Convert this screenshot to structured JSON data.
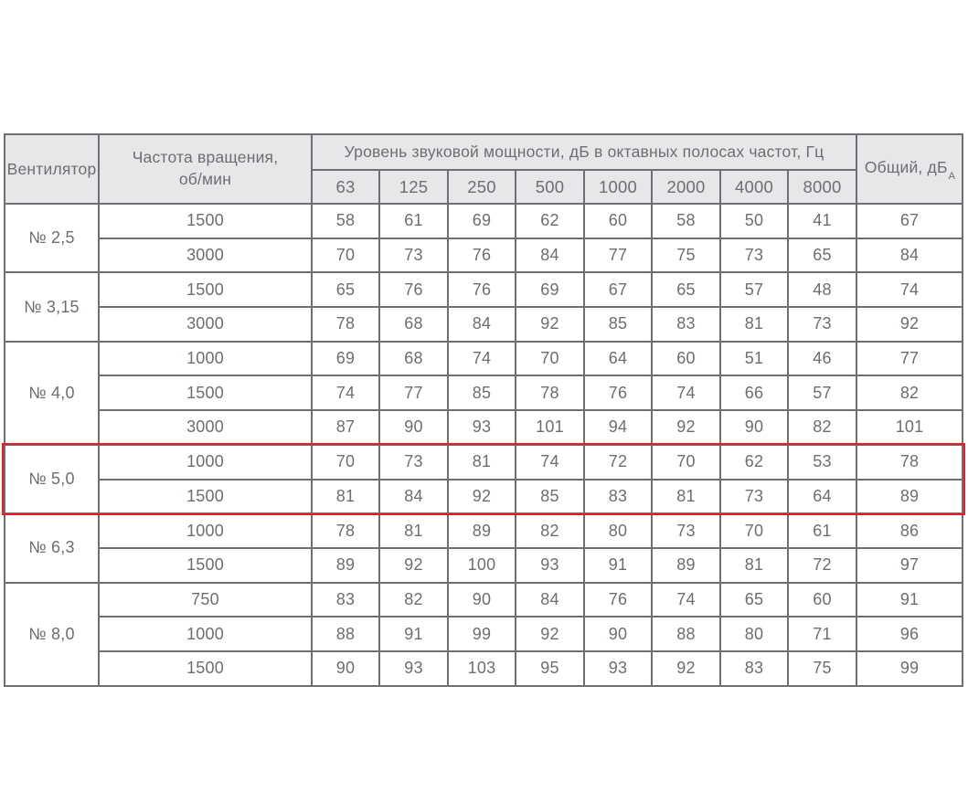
{
  "colors": {
    "border": "#6e6f72",
    "header_bg": "#e6e7e8",
    "text": "#6d6e71",
    "highlight_red": "#ec1b21"
  },
  "table": {
    "header": {
      "fan": "Вентилятор",
      "rpm": "Частота вращения, об/мин",
      "octave_title": "Уровень звуковой мощности, дБ в октавных полосах частот, Гц",
      "frequencies": [
        "63",
        "125",
        "250",
        "500",
        "1000",
        "2000",
        "4000",
        "8000"
      ],
      "total_label": "Общий, дБ",
      "total_subscript": "А"
    },
    "groups": [
      {
        "fan": "№ 2,5",
        "highlight": false,
        "rows": [
          {
            "rpm": "1500",
            "values": [
              58,
              61,
              69,
              62,
              60,
              58,
              50,
              41
            ],
            "total": 67
          },
          {
            "rpm": "3000",
            "values": [
              70,
              73,
              76,
              84,
              77,
              75,
              73,
              65
            ],
            "total": 84
          }
        ]
      },
      {
        "fan": "№ 3,15",
        "highlight": false,
        "rows": [
          {
            "rpm": "1500",
            "values": [
              65,
              76,
              76,
              69,
              67,
              65,
              57,
              48
            ],
            "total": 74
          },
          {
            "rpm": "3000",
            "values": [
              78,
              68,
              84,
              92,
              85,
              83,
              81,
              73
            ],
            "total": 92
          }
        ]
      },
      {
        "fan": "№ 4,0",
        "highlight": false,
        "rows": [
          {
            "rpm": "1000",
            "values": [
              69,
              68,
              74,
              70,
              64,
              60,
              51,
              46
            ],
            "total": 77
          },
          {
            "rpm": "1500",
            "values": [
              74,
              77,
              85,
              78,
              76,
              74,
              66,
              57
            ],
            "total": 82
          },
          {
            "rpm": "3000",
            "values": [
              87,
              90,
              93,
              101,
              94,
              92,
              90,
              82
            ],
            "total": 101
          }
        ]
      },
      {
        "fan": "№ 5,0",
        "highlight": true,
        "rows": [
          {
            "rpm": "1000",
            "values": [
              70,
              73,
              81,
              74,
              72,
              70,
              62,
              53
            ],
            "total": 78
          },
          {
            "rpm": "1500",
            "values": [
              81,
              84,
              92,
              85,
              83,
              81,
              73,
              64
            ],
            "total": 89
          }
        ]
      },
      {
        "fan": "№ 6,3",
        "highlight": false,
        "rows": [
          {
            "rpm": "1000",
            "values": [
              78,
              81,
              89,
              82,
              80,
              73,
              70,
              61
            ],
            "total": 86
          },
          {
            "rpm": "1500",
            "values": [
              89,
              92,
              100,
              93,
              91,
              89,
              81,
              72
            ],
            "total": 97
          }
        ]
      },
      {
        "fan": "№ 8,0",
        "highlight": false,
        "rows": [
          {
            "rpm": "750",
            "values": [
              83,
              82,
              90,
              84,
              76,
              74,
              65,
              60
            ],
            "total": 91
          },
          {
            "rpm": "1000",
            "values": [
              88,
              91,
              99,
              92,
              90,
              88,
              80,
              71
            ],
            "total": 96
          },
          {
            "rpm": "1500",
            "values": [
              90,
              93,
              103,
              95,
              93,
              92,
              83,
              75
            ],
            "total": 99
          }
        ]
      }
    ]
  }
}
